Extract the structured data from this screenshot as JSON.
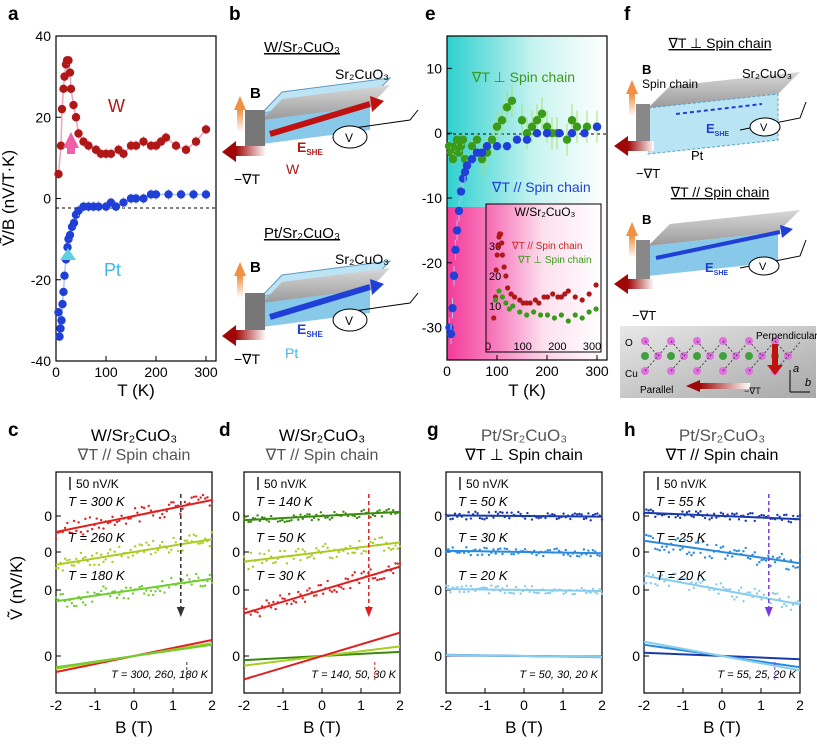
{
  "colors": {
    "w_dark": "#b01818",
    "w_light": "#f0a0c0",
    "pt_dark": "#1f3fd6",
    "pt_light": "#a8c8f0",
    "green": "#3a9a1a",
    "red": "#e02020",
    "lime": "#a8cc20",
    "lgreen": "#70cc30",
    "navy": "#1a3aa8",
    "mblue": "#2a8ae0",
    "cyan": "#88ccee",
    "cyan_fill": "#3fd6d6",
    "pink_fill": "#f040a0",
    "orange": "#f0a060",
    "arrow_red": "#b01010"
  },
  "panels": {
    "a": "a",
    "b": "b",
    "c": "c",
    "d": "d",
    "e": "e",
    "f": "f",
    "g": "g",
    "h": "h"
  },
  "diagrams": {
    "b_top_title": "W/Sr₂CuO₃",
    "b_bottom_title": "Pt/Sr₂CuO₃",
    "sr2cuo3": "Sr₂CuO₃",
    "B": "B",
    "grad_t": "−∇T",
    "w": "W",
    "pt": "Pt",
    "eshe": "E",
    "eshe_sub": "SHE",
    "f_top_title": "∇T ⊥ Spin chain",
    "f_bottom_title": "∇T // Spin chain",
    "spin_chain": "Spin chain",
    "o": "O",
    "cu": "Cu",
    "perpendicular": "Perpendicular",
    "parallel": "Parallel",
    "axis_a": "a",
    "axis_b": "b"
  },
  "chart_data": [
    {
      "id": "a",
      "type": "scatter",
      "xlabel": "T (K)",
      "ylabel": "Ṽ/B (nV/T·K)",
      "xlim": [
        0,
        320
      ],
      "ylim": [
        -40,
        40
      ],
      "xticks": [
        "0",
        "100",
        "200",
        "300"
      ],
      "yticks": [
        "-40",
        "-20",
        "0",
        "20",
        "40"
      ],
      "series": [
        {
          "name": "W",
          "x": [
            5,
            10,
            12,
            15,
            17,
            20,
            22,
            25,
            28,
            30,
            35,
            40,
            45,
            55,
            65,
            80,
            90,
            100,
            110,
            125,
            135,
            150,
            160,
            175,
            190,
            200,
            210,
            220,
            240,
            260,
            280,
            300
          ],
          "y": [
            6,
            13,
            22,
            27,
            30,
            33,
            34,
            34,
            31,
            27,
            23,
            20,
            16,
            14,
            13,
            12,
            11,
            11,
            11,
            12,
            11,
            13,
            13,
            14,
            13,
            13,
            14,
            15,
            13,
            12,
            14,
            17
          ]
        },
        {
          "name": "Pt",
          "x": [
            5,
            7,
            9,
            11,
            13,
            15,
            17,
            20,
            23,
            25,
            28,
            32,
            36,
            40,
            45,
            55,
            65,
            75,
            85,
            100,
            110,
            120,
            135,
            150,
            160,
            175,
            190,
            200,
            225,
            250,
            275,
            300
          ],
          "y": [
            -28,
            -34,
            -32,
            -30,
            -26,
            -23,
            -19,
            -15,
            -12,
            -10,
            -9,
            -7,
            -6,
            -4,
            -3,
            -2,
            -2,
            -2,
            -2,
            -2,
            -1,
            -2,
            -1,
            0,
            0,
            0,
            1,
            1,
            1,
            1,
            1,
            1
          ]
        }
      ],
      "annotations": [
        "W",
        "Pt"
      ]
    },
    {
      "id": "e",
      "type": "scatter",
      "xlabel": "T (K)",
      "ylabel": "",
      "xlim": [
        0,
        320
      ],
      "ylim": [
        -35,
        15
      ],
      "xticks": [
        "0",
        "100",
        "200",
        "300"
      ],
      "yticks": [
        "-30",
        "-20",
        "-10",
        "0",
        "10"
      ],
      "series": [
        {
          "name": "∇T ⊥ Spin chain",
          "x": [
            4,
            8,
            12,
            16,
            20,
            24,
            28,
            32,
            36,
            40,
            50,
            60,
            70,
            80,
            90,
            100,
            110,
            120,
            130,
            150,
            160,
            170,
            180,
            190,
            200,
            210,
            220,
            240,
            250,
            260,
            280,
            300
          ],
          "y": [
            -2,
            -3,
            -4,
            -2,
            -1,
            -3,
            -2,
            -1,
            -4,
            -5,
            -2,
            -1,
            -4,
            -3,
            -1,
            1,
            2,
            4,
            5,
            2,
            0,
            1,
            2,
            3,
            1,
            0,
            0,
            -1,
            2,
            1,
            1,
            1
          ]
        },
        {
          "name": "∇T // Spin chain",
          "x": [
            5,
            8,
            11,
            14,
            17,
            20,
            24,
            28,
            32,
            36,
            40,
            50,
            60,
            70,
            80,
            100,
            120,
            140,
            160,
            180,
            200,
            225,
            250,
            275,
            300
          ],
          "y": [
            -30,
            -31,
            -27,
            -22,
            -18,
            -15,
            -12,
            -9,
            -7,
            -6,
            -5,
            -4,
            -3,
            -3,
            -2,
            -2,
            -2,
            -1,
            -1,
            0,
            0,
            0,
            0,
            0,
            1
          ]
        }
      ],
      "legend": [
        "∇T ⊥ Spin chain",
        "∇T // Spin chain"
      ],
      "inset": {
        "title": "W/Sr₂CuO₃",
        "legend": [
          "∇T // Spin chain",
          "∇T ⊥ Spin chain"
        ],
        "xticks": [
          "0",
          "100",
          "200",
          "300"
        ],
        "yticks": [
          "10",
          "20",
          "30"
        ]
      }
    },
    {
      "id": "c",
      "type": "line",
      "title": "W/Sr₂CuO₃",
      "subtitle": "∇T // Spin chain",
      "xlabel": "B (T)",
      "ylabel": "Ṽ (nV/K)",
      "xlim": [
        -2,
        2
      ],
      "xticks": [
        "-2",
        "-1",
        "0",
        "1",
        "2"
      ],
      "yticks": [
        "0",
        "0",
        "0",
        "0"
      ],
      "scalebar": "50 nV/K",
      "series": [
        {
          "name": "T = 300 K",
          "slope": 0.5
        },
        {
          "name": "T = 260 K",
          "slope": 0.4
        },
        {
          "name": "T = 180 K",
          "slope": 0.35
        }
      ],
      "combined_label": "T = 300, 260, 180 K"
    },
    {
      "id": "d",
      "type": "line",
      "title": "W/Sr₂CuO₃",
      "subtitle": "∇T // Spin chain",
      "xlabel": "B (T)",
      "ylabel": "",
      "xlim": [
        -2,
        2
      ],
      "xticks": [
        "-2",
        "-1",
        "0",
        "1",
        "2"
      ],
      "yticks": [
        "0",
        "0",
        "0",
        "0"
      ],
      "scalebar": "50 nV/K",
      "series": [
        {
          "name": "T = 140 K",
          "slope": 0.13
        },
        {
          "name": "T = 50 K",
          "slope": 0.3
        },
        {
          "name": "T = 30 K",
          "slope": 0.73
        }
      ],
      "combined_label": "T = 140, 50, 30 K"
    },
    {
      "id": "g",
      "type": "line",
      "title": "Pt/Sr₂CuO₃",
      "subtitle": "∇T ⊥ Spin chain",
      "xlabel": "B (T)",
      "ylabel": "",
      "xlim": [
        -2,
        2
      ],
      "xticks": [
        "-2",
        "-1",
        "0",
        "1",
        "2"
      ],
      "yticks": [
        "0",
        "0",
        "0",
        "0"
      ],
      "scalebar": "50 nV/K",
      "series": [
        {
          "name": "T = 50 K",
          "slope": -0.02
        },
        {
          "name": "T = 30 K",
          "slope": -0.04
        },
        {
          "name": "T = 20 K",
          "slope": -0.03
        }
      ],
      "combined_label": "T = 50, 30, 20 K"
    },
    {
      "id": "h",
      "type": "line",
      "title": "Pt/Sr₂CuO₃",
      "subtitle": "∇T // Spin chain",
      "xlabel": "B (T)",
      "ylabel": "",
      "xlim": [
        -2,
        2
      ],
      "xticks": [
        "-2",
        "-1",
        "0",
        "1",
        "2"
      ],
      "yticks": [
        "0",
        "0",
        "0",
        "0"
      ],
      "scalebar": "50 nV/K",
      "series": [
        {
          "name": "T = 55 K",
          "slope": -0.1
        },
        {
          "name": "T = 25 K",
          "slope": -0.35
        },
        {
          "name": "T = 20 K",
          "slope": -0.45
        }
      ],
      "combined_label": "T = 55, 25, 20 K"
    }
  ]
}
